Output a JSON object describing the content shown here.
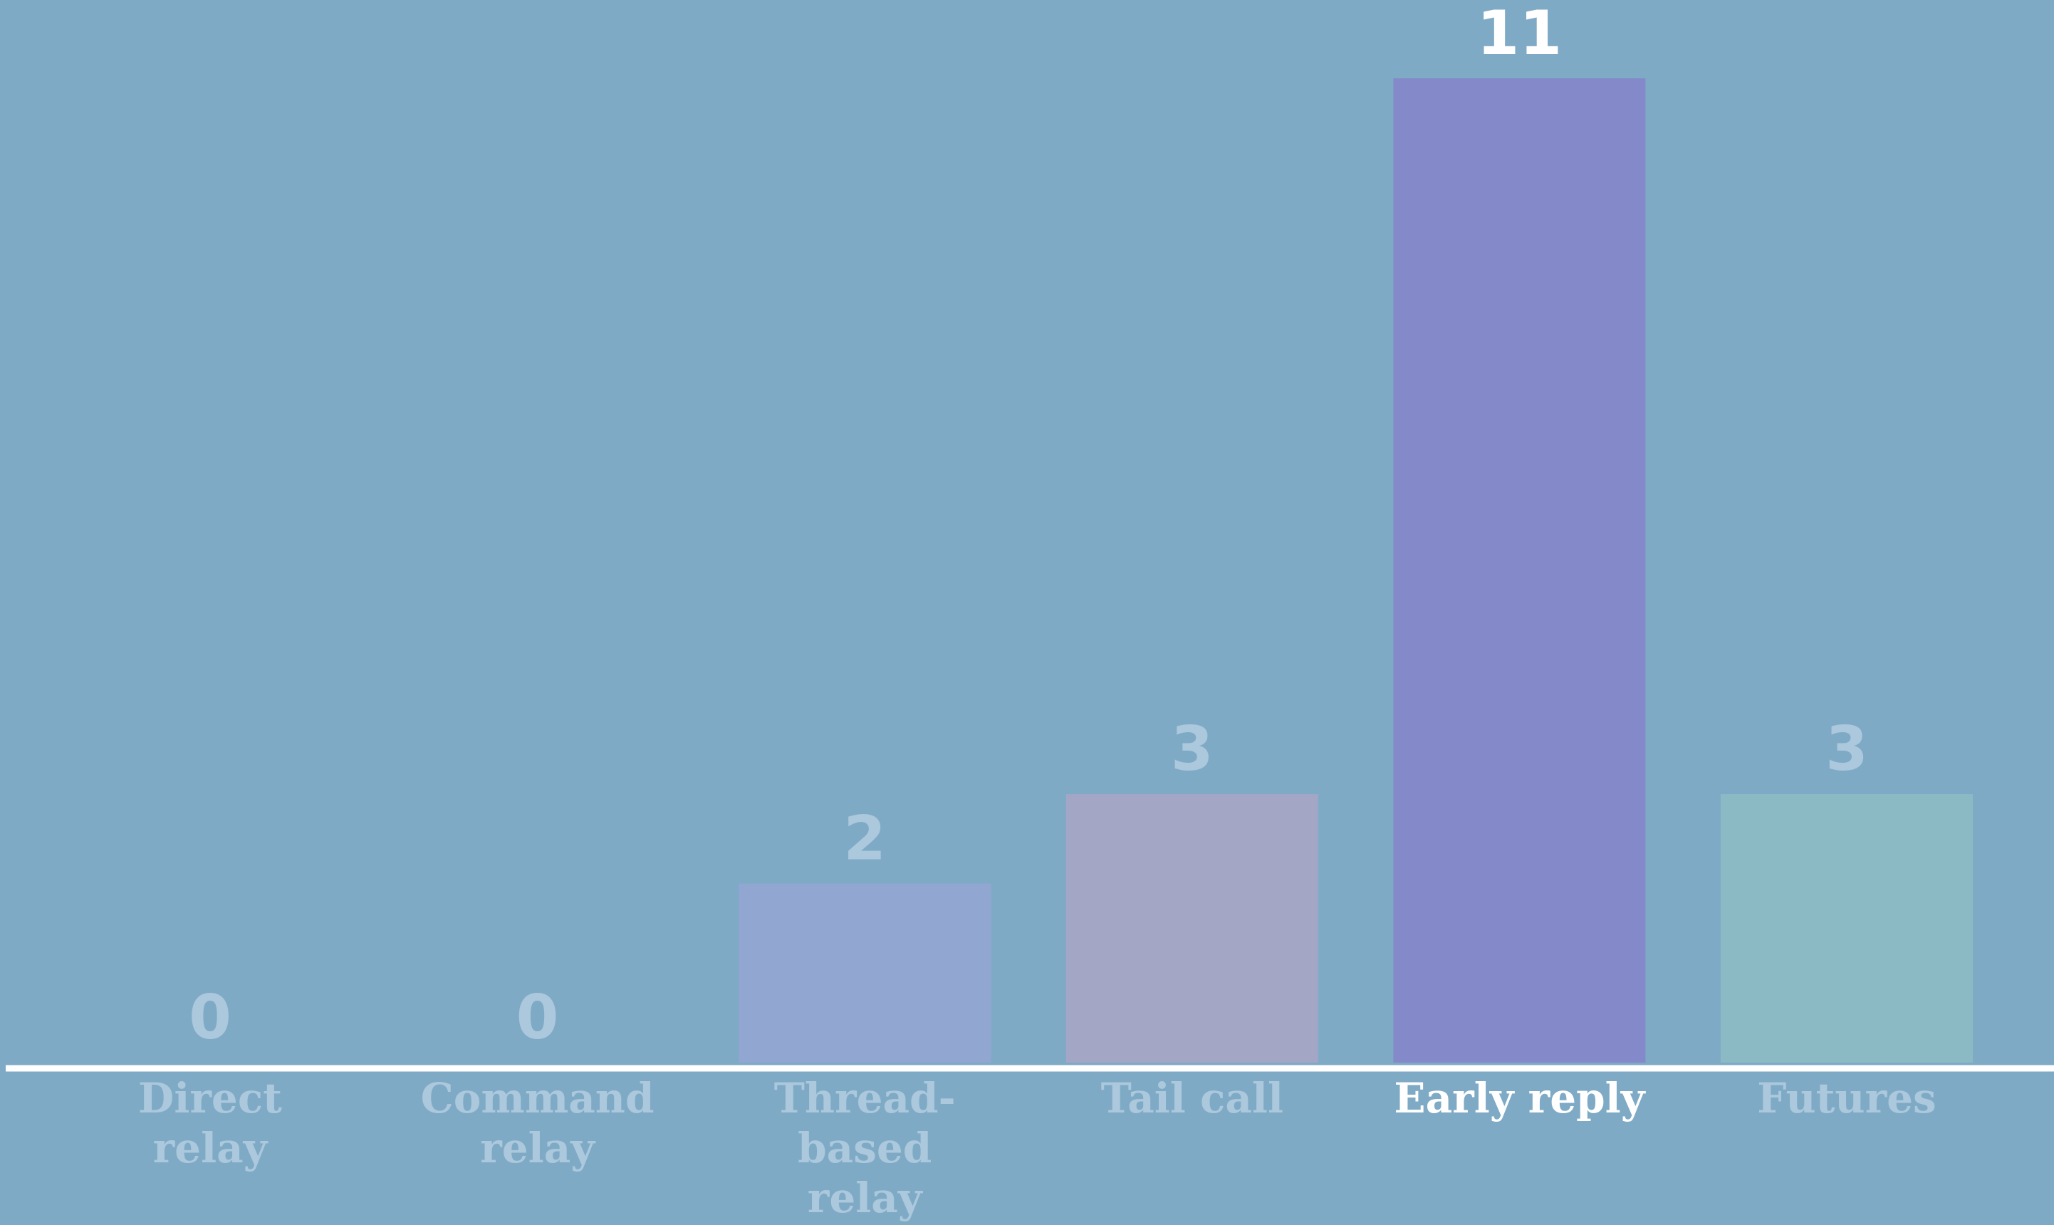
{
  "chart_data": {
    "type": "bar",
    "categories": [
      [
        "Direct",
        "relay"
      ],
      [
        "Command",
        "relay"
      ],
      [
        "Thread-",
        "based",
        "relay"
      ],
      [
        "Tail call"
      ],
      [
        "Early reply"
      ],
      [
        "Futures"
      ]
    ],
    "values": [
      0,
      0,
      2,
      3,
      11,
      3
    ],
    "value_labels": [
      "0",
      "0",
      "2",
      "3",
      "11",
      "3"
    ],
    "highlighted_index": 4,
    "ylim": [
      0,
      11
    ],
    "grid": false,
    "title": "",
    "xlabel": "",
    "ylabel": ""
  },
  "colors": {
    "background": "#7faac6",
    "axis": "#ffffff",
    "bars": [
      "#90a8d2",
      "#90a8d2",
      "#92a6d2",
      "#a4a6c6",
      "#8389c9",
      "#8bbac4"
    ],
    "highlight_text": "#ffffff",
    "dim_text": "#abc8dc"
  }
}
